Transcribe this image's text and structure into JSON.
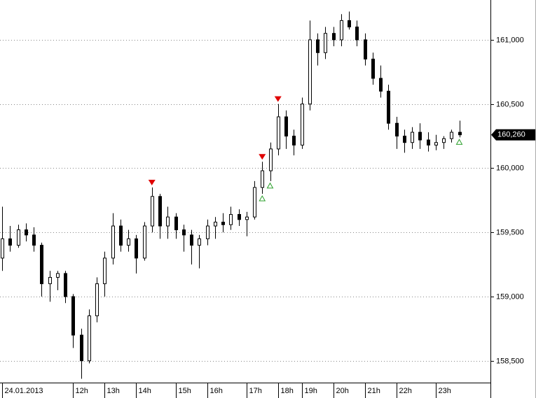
{
  "chart_data": {
    "type": "candlestick",
    "categories": [
      "24.01.2013",
      null,
      null,
      null,
      null,
      null,
      null,
      null,
      null,
      "12h",
      null,
      null,
      null,
      "13h",
      null,
      null,
      null,
      "14h",
      null,
      null,
      null,
      null,
      "15h",
      null,
      null,
      null,
      "16h",
      null,
      null,
      null,
      null,
      "17h",
      null,
      null,
      null,
      "18h",
      null,
      null,
      "19h",
      null,
      null,
      null,
      "20h",
      null,
      null,
      null,
      "21h",
      null,
      null,
      null,
      "22h",
      null,
      null,
      null,
      null,
      "23h",
      null,
      null,
      null
    ],
    "open": [
      159300,
      159450,
      159400,
      159520,
      159480,
      159400,
      159100,
      159150,
      159180,
      159000,
      158700,
      158500,
      158850,
      159100,
      159300,
      159550,
      159400,
      159450,
      159300,
      159550,
      159780,
      159550,
      159620,
      159520,
      159480,
      159400,
      159450,
      159550,
      159580,
      159560,
      159640,
      159600,
      159620,
      159850,
      159980,
      160150,
      160400,
      160250,
      160180,
      160500,
      161000,
      160900,
      161050,
      161000,
      161150,
      161100,
      161000,
      160850,
      160700,
      160600,
      160350,
      160250,
      160200,
      160280,
      160220,
      160180,
      160200,
      160230,
      160280
    ],
    "high": [
      159700,
      159550,
      159560,
      159570,
      159540,
      159420,
      159200,
      159200,
      159200,
      159020,
      158750,
      158900,
      159150,
      159350,
      159650,
      159600,
      159520,
      159480,
      159580,
      159850,
      159800,
      159700,
      159650,
      159560,
      159520,
      159480,
      159600,
      159620,
      159650,
      159700,
      159680,
      159660,
      159900,
      160050,
      160200,
      160500,
      160450,
      160300,
      160550,
      161150,
      161050,
      161100,
      161100,
      161200,
      161220,
      161150,
      161050,
      160900,
      160800,
      160650,
      160400,
      160300,
      160320,
      160350,
      160280,
      160260,
      160250,
      160300,
      160370
    ],
    "low": [
      159200,
      159350,
      159380,
      159430,
      159350,
      159000,
      158960,
      159050,
      158950,
      158600,
      158360,
      158480,
      158800,
      159000,
      159250,
      159350,
      159350,
      159180,
      159280,
      159500,
      159450,
      159450,
      159450,
      159350,
      159250,
      159220,
      159400,
      159450,
      159500,
      159520,
      159550,
      159470,
      159600,
      159800,
      159900,
      160100,
      160150,
      160100,
      160150,
      160450,
      160800,
      160850,
      160950,
      160950,
      161080,
      160950,
      160800,
      160650,
      160550,
      160300,
      160150,
      160120,
      160150,
      160150,
      160130,
      160140,
      160150,
      160200,
      160240
    ],
    "close": [
      159450,
      159400,
      159520,
      159480,
      159400,
      159100,
      159150,
      159180,
      159000,
      158700,
      158500,
      158850,
      159100,
      159300,
      159550,
      159400,
      159450,
      159300,
      159550,
      159780,
      159550,
      159620,
      159520,
      159480,
      159400,
      159450,
      159550,
      159580,
      159560,
      159640,
      159600,
      159620,
      159850,
      159980,
      160150,
      160400,
      160250,
      160180,
      160500,
      161000,
      160900,
      161050,
      161000,
      161150,
      161100,
      161000,
      160850,
      160700,
      160600,
      160350,
      160250,
      160200,
      160280,
      160220,
      160180,
      160200,
      160230,
      160280,
      160260
    ],
    "up_color": "#ffffff",
    "down_color": "#000000",
    "sell_signals": [
      19,
      33,
      35
    ],
    "sell_color": "#e00000",
    "buy_signals": [
      33,
      34,
      58
    ],
    "buy_color": "#2ca02c",
    "ylim": [
      158330,
      161310
    ],
    "yticks": [
      {
        "value": 158500,
        "label": "158,500"
      },
      {
        "value": 159000,
        "label": "159,000"
      },
      {
        "value": 159500,
        "label": "159,500"
      },
      {
        "value": 160000,
        "label": "160,000"
      },
      {
        "value": 160500,
        "label": "160,500"
      },
      {
        "value": 161000,
        "label": "161,000"
      }
    ],
    "grid": true,
    "last_price": {
      "value": 160260,
      "label": "160,260"
    }
  }
}
